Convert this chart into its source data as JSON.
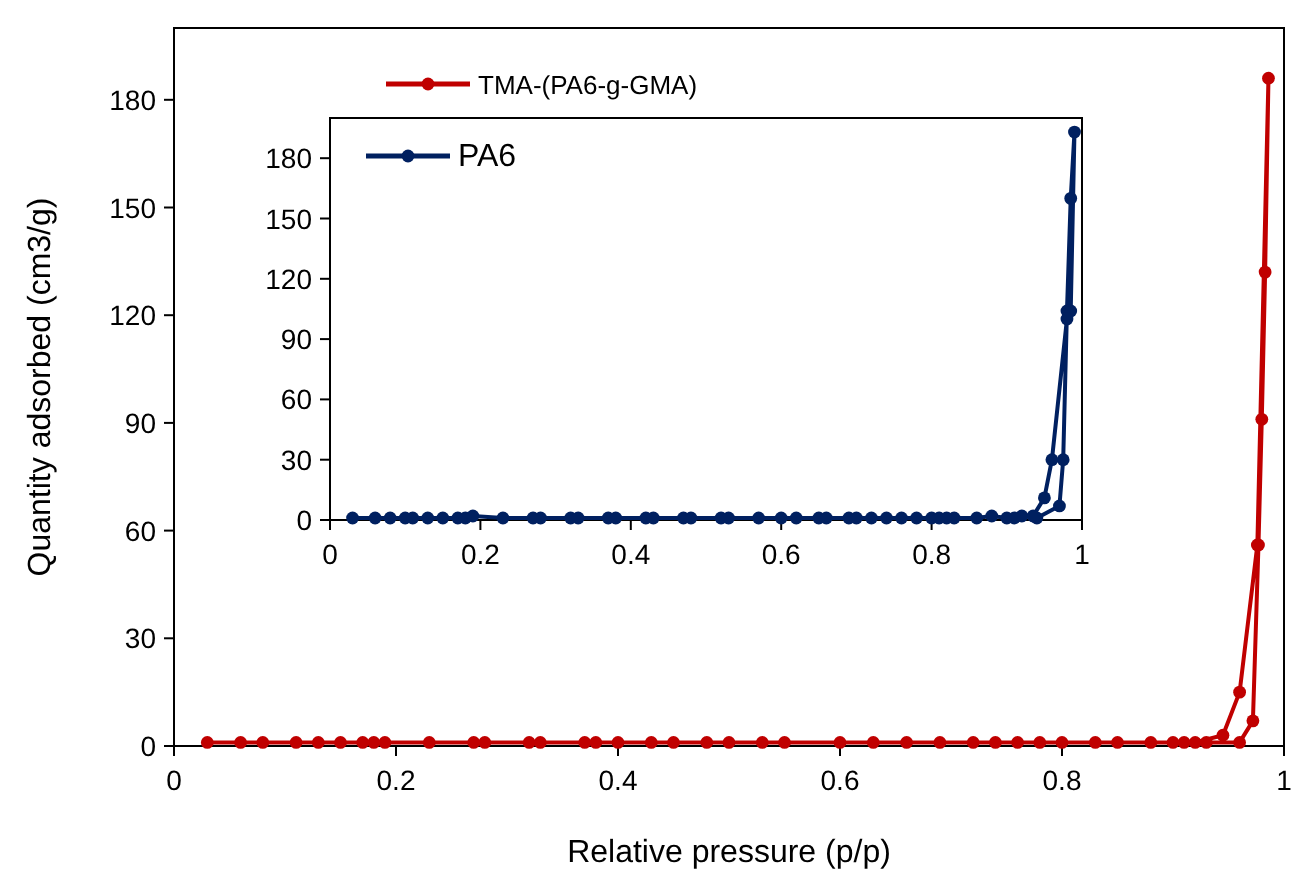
{
  "chart_data": [
    {
      "type": "line",
      "xlabel": "Relative pressure (p/p)",
      "ylabel": "Quantity adsorbed (cm3/g)",
      "xlim": [
        0,
        1
      ],
      "xticks": [
        0,
        0.2,
        0.4,
        0.6,
        0.8,
        1
      ],
      "ylim": [
        0,
        200
      ],
      "yticks": [
        0,
        30,
        60,
        90,
        120,
        150,
        180
      ],
      "grid": false,
      "legend": "top left",
      "marker": "circle",
      "line_style": "solid",
      "series": [
        {
          "name": "TMA-(PA6-g-GMA)",
          "color": "#c00000",
          "x": [
            0.03,
            0.06,
            0.08,
            0.11,
            0.13,
            0.15,
            0.17,
            0.18,
            0.19,
            0.23,
            0.27,
            0.28,
            0.32,
            0.33,
            0.37,
            0.38,
            0.4,
            0.43,
            0.45,
            0.48,
            0.5,
            0.53,
            0.55,
            0.6,
            0.63,
            0.66,
            0.69,
            0.72,
            0.74,
            0.76,
            0.78,
            0.8,
            0.83,
            0.85,
            0.88,
            0.91,
            0.93,
            0.96,
            0.972,
            0.977,
            0.98,
            0.983,
            0.986,
            0.976,
            0.96,
            0.945,
            0.92,
            0.9
          ],
          "values": [
            1,
            1,
            1,
            1,
            1,
            1,
            1,
            1,
            1,
            1,
            1,
            1,
            1,
            1,
            1,
            1,
            1,
            1,
            1,
            1,
            1,
            1,
            1,
            1,
            1,
            1,
            1,
            1,
            1,
            1,
            1,
            1,
            1,
            1,
            1,
            1,
            1,
            1,
            7,
            56,
            91,
            132,
            186,
            56,
            15,
            3,
            1,
            1
          ]
        }
      ]
    },
    {
      "type": "line",
      "xlim": [
        0,
        1
      ],
      "xticks": [
        0,
        0.2,
        0.4,
        0.6,
        0.8,
        1
      ],
      "ylim": [
        0,
        200
      ],
      "yticks": [
        0,
        30,
        60,
        90,
        120,
        150,
        180
      ],
      "grid": false,
      "legend": "top left",
      "marker": "circle",
      "line_style": "solid",
      "series": [
        {
          "name": "PA6",
          "color": "#002060",
          "x": [
            0.03,
            0.06,
            0.08,
            0.1,
            0.11,
            0.13,
            0.15,
            0.17,
            0.18,
            0.19,
            0.23,
            0.27,
            0.28,
            0.32,
            0.33,
            0.37,
            0.38,
            0.42,
            0.43,
            0.47,
            0.48,
            0.52,
            0.53,
            0.57,
            0.6,
            0.62,
            0.65,
            0.66,
            0.69,
            0.7,
            0.72,
            0.74,
            0.76,
            0.78,
            0.8,
            0.81,
            0.82,
            0.83,
            0.86,
            0.88,
            0.9,
            0.92,
            0.94,
            0.97,
            0.975,
            0.98,
            0.985,
            0.99,
            0.985,
            0.98,
            0.96,
            0.95,
            0.935,
            0.91
          ],
          "values": [
            1,
            1,
            1,
            1,
            1,
            1,
            1,
            1,
            1,
            2,
            1,
            1,
            1,
            1,
            1,
            1,
            1,
            1,
            1,
            1,
            1,
            1,
            1,
            1,
            1,
            1,
            1,
            1,
            1,
            1,
            1,
            1,
            1,
            1,
            1,
            1,
            1,
            1,
            1,
            2,
            1,
            2,
            1,
            7,
            30,
            104,
            160,
            193,
            104,
            100,
            30,
            11,
            2,
            1
          ]
        }
      ]
    }
  ]
}
